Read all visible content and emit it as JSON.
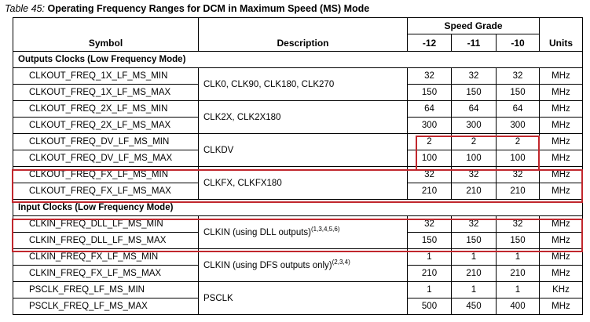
{
  "caption": {
    "label": "Table  45:",
    "title": "Operating Frequency Ranges for DCM in Maximum Speed (MS) Mode"
  },
  "header": {
    "symbol": "Symbol",
    "description": "Description",
    "speed_grade": "Speed Grade",
    "grades": [
      "-12",
      "-11",
      "-10"
    ],
    "units": "Units"
  },
  "sections": [
    {
      "title": "Outputs Clocks (Low Frequency Mode)",
      "groups": [
        {
          "description": "CLK0, CLK90, CLK180, CLK270",
          "rows": [
            {
              "symbol": "CLKOUT_FREQ_1X_LF_MS_MIN",
              "values": [
                "32",
                "32",
                "32"
              ],
              "unit": "MHz"
            },
            {
              "symbol": "CLKOUT_FREQ_1X_LF_MS_MAX",
              "values": [
                "150",
                "150",
                "150"
              ],
              "unit": "MHz"
            }
          ]
        },
        {
          "description": "CLK2X, CLK2X180",
          "rows": [
            {
              "symbol": "CLKOUT_FREQ_2X_LF_MS_MIN",
              "values": [
                "64",
                "64",
                "64"
              ],
              "unit": "MHz"
            },
            {
              "symbol": "CLKOUT_FREQ_2X_LF_MS_MAX",
              "values": [
                "300",
                "300",
                "300"
              ],
              "unit": "MHz"
            }
          ]
        },
        {
          "description": "CLKDV",
          "rows": [
            {
              "symbol": "CLKOUT_FREQ_DV_LF_MS_MIN",
              "values": [
                "2",
                "2",
                "2"
              ],
              "unit": "MHz"
            },
            {
              "symbol": "CLKOUT_FREQ_DV_LF_MS_MAX",
              "values": [
                "100",
                "100",
                "100"
              ],
              "unit": "MHz"
            }
          ]
        },
        {
          "description": "CLKFX, CLKFX180",
          "rows": [
            {
              "symbol": "CLKOUT_FREQ_FX_LF_MS_MIN",
              "values": [
                "32",
                "32",
                "32"
              ],
              "unit": "MHz"
            },
            {
              "symbol": "CLKOUT_FREQ_FX_LF_MS_MAX",
              "values": [
                "210",
                "210",
                "210"
              ],
              "unit": "MHz"
            }
          ]
        }
      ]
    },
    {
      "title": "Input Clocks (Low Frequency Mode)",
      "groups": [
        {
          "description": "CLKIN (using DLL outputs)",
          "note": "(1,3,4,5,6)",
          "rows": [
            {
              "symbol": "CLKIN_FREQ_DLL_LF_MS_MIN",
              "values": [
                "32",
                "32",
                "32"
              ],
              "unit": "MHz"
            },
            {
              "symbol": "CLKIN_FREQ_DLL_LF_MS_MAX",
              "values": [
                "150",
                "150",
                "150"
              ],
              "unit": "MHz"
            }
          ]
        },
        {
          "description": "CLKIN (using DFS outputs only)",
          "note": "(2,3,4)",
          "rows": [
            {
              "symbol": "CLKIN_FREQ_FX_LF_MS_MIN",
              "values": [
                "1",
                "1",
                "1"
              ],
              "unit": "MHz"
            },
            {
              "symbol": "CLKIN_FREQ_FX_LF_MS_MAX",
              "values": [
                "210",
                "210",
                "210"
              ],
              "unit": "MHz"
            }
          ]
        },
        {
          "description": "PSCLK",
          "rows": [
            {
              "symbol": "PSCLK_FREQ_LF_MS_MIN",
              "values": [
                "1",
                "1",
                "1"
              ],
              "unit": "KHz"
            },
            {
              "symbol": "PSCLK_FREQ_LF_MS_MAX",
              "values": [
                "500",
                "450",
                "400"
              ],
              "unit": "MHz"
            }
          ]
        }
      ]
    }
  ],
  "highlight_color": "#c1272d"
}
